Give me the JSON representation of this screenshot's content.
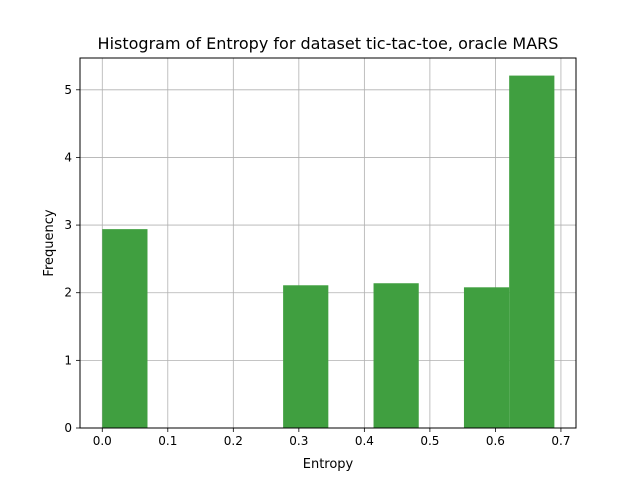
{
  "chart_data": {
    "type": "bar",
    "title": "Histogram of Entropy for dataset tic-tac-toe, oracle MARS",
    "xlabel": "Entropy",
    "ylabel": "Frequency",
    "xlim": [
      -0.034,
      0.723
    ],
    "ylim": [
      0,
      5.47
    ],
    "xticks": [
      "0.0",
      "0.1",
      "0.2",
      "0.3",
      "0.4",
      "0.5",
      "0.6",
      "0.7"
    ],
    "yticks": [
      "0",
      "1",
      "2",
      "3",
      "4",
      "5"
    ],
    "grid": true,
    "bar_color": "#409f40",
    "bins": [
      {
        "x0": 0.0,
        "x1": 0.069,
        "value": 2.94
      },
      {
        "x0": 0.069,
        "x1": 0.138,
        "value": 0
      },
      {
        "x0": 0.138,
        "x1": 0.207,
        "value": 0
      },
      {
        "x0": 0.207,
        "x1": 0.276,
        "value": 0
      },
      {
        "x0": 0.276,
        "x1": 0.345,
        "value": 2.11
      },
      {
        "x0": 0.345,
        "x1": 0.414,
        "value": 0
      },
      {
        "x0": 0.414,
        "x1": 0.483,
        "value": 2.14
      },
      {
        "x0": 0.483,
        "x1": 0.552,
        "value": 0
      },
      {
        "x0": 0.552,
        "x1": 0.621,
        "value": 2.08
      },
      {
        "x0": 0.621,
        "x1": 0.69,
        "value": 5.21
      }
    ]
  }
}
